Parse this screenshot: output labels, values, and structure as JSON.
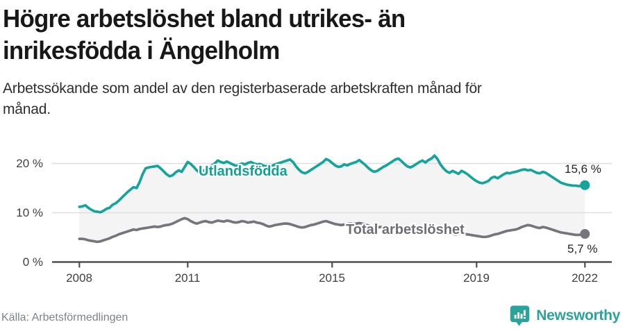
{
  "header": {
    "title_lines": [
      "Högre arbetslöshet bland utrikes- än",
      "inrikesfödda i Ängelholm"
    ],
    "subtitle_lines": [
      "Arbetssökande som andel av den registerbaserade arbetskraften månad för",
      "månad."
    ]
  },
  "footer": {
    "source": "Källa: Arbetsförmedlingen",
    "brand_name": "Newsworthy",
    "brand_icon": "speech-bubble-with-bar-chart",
    "brand_color": "#2ba39a"
  },
  "chart_data": {
    "type": "line",
    "title": "Högre arbetslöshet bland utrikes- än inrikesfödda i Ängelholm",
    "subtitle": "Arbetssökande som andel av den registerbaserade arbetskraften månad för månad.",
    "source": "Källa: Arbetsförmedlingen",
    "x_unit": "month",
    "x_start": "2008-01",
    "x_end": "2022-01",
    "x_ticks": [
      2008,
      2011,
      2015,
      2019,
      2022
    ],
    "x_tick_labels": [
      "2008",
      "2011",
      "2015",
      "2019",
      "2022"
    ],
    "y_tick_labels": [
      "20 %",
      "10 %",
      "0 %"
    ],
    "y_grid_values": [
      10,
      20
    ],
    "ylim": [
      0,
      22
    ],
    "grid": "horizontal-only",
    "legend_position": "inline-labels",
    "colors": {
      "band": "#f4f4f5",
      "grid": "#dedede",
      "axis": "#4f4f4f"
    },
    "band_fill_between_series": true,
    "series": [
      {
        "name": "Utlandsfödda",
        "color": "#14a49b",
        "end_label": "15,6 %",
        "end_value": 15.6,
        "values": [
          11.2,
          11.3,
          11.5,
          11.0,
          10.6,
          10.3,
          10.2,
          10.1,
          10.4,
          10.8,
          11.0,
          11.6,
          11.9,
          12.4,
          13.0,
          13.6,
          14.2,
          14.7,
          15.2,
          15.0,
          16.2,
          17.8,
          19.0,
          19.2,
          19.3,
          19.4,
          19.5,
          19.0,
          18.4,
          17.8,
          17.4,
          17.6,
          18.2,
          18.6,
          18.3,
          19.3,
          20.3,
          19.9,
          19.3,
          18.6,
          18.1,
          18.4,
          18.8,
          19.2,
          19.6,
          20.0,
          20.6,
          20.3,
          20.1,
          20.4,
          20.1,
          19.8,
          19.5,
          19.7,
          20.0,
          19.8,
          20.1,
          20.3,
          20.0,
          19.8,
          19.9,
          19.6,
          19.4,
          19.7,
          19.5,
          19.8,
          20.0,
          20.2,
          20.4,
          20.6,
          20.8,
          20.3,
          19.4,
          18.7,
          18.2,
          18.0,
          18.3,
          18.7,
          19.1,
          19.5,
          19.9,
          20.3,
          20.9,
          20.6,
          20.1,
          19.6,
          19.3,
          19.4,
          19.8,
          19.6,
          19.9,
          20.1,
          20.3,
          20.7,
          20.2,
          19.7,
          19.1,
          18.6,
          18.3,
          18.5,
          18.9,
          19.3,
          19.6,
          20.0,
          20.4,
          20.8,
          21.0,
          20.5,
          19.9,
          19.4,
          19.2,
          19.5,
          19.9,
          20.3,
          20.6,
          20.2,
          20.7,
          21.0,
          21.6,
          20.9,
          19.8,
          19.0,
          18.4,
          18.1,
          18.5,
          18.2,
          17.9,
          18.5,
          18.2,
          17.8,
          17.3,
          16.8,
          16.4,
          16.1,
          16.0,
          16.2,
          16.5,
          17.1,
          17.3,
          17.0,
          17.4,
          17.8,
          18.1,
          18.0,
          18.2,
          18.3,
          18.5,
          18.7,
          18.8,
          18.6,
          18.7,
          18.4,
          18.1,
          18.0,
          18.3,
          18.1,
          17.7,
          17.3,
          16.9,
          16.5,
          16.1,
          15.9,
          15.7,
          15.6,
          15.5,
          15.5,
          15.4,
          15.5,
          15.6
        ]
      },
      {
        "name": "Total arbetslöshet",
        "color": "#75757b",
        "end_label": "5,7 %",
        "end_value": 5.7,
        "values": [
          4.7,
          4.7,
          4.6,
          4.4,
          4.3,
          4.2,
          4.1,
          4.2,
          4.4,
          4.6,
          4.8,
          5.1,
          5.3,
          5.6,
          5.8,
          6.0,
          6.2,
          6.4,
          6.6,
          6.5,
          6.7,
          6.8,
          6.9,
          7.0,
          7.1,
          7.2,
          7.1,
          7.2,
          7.4,
          7.5,
          7.6,
          7.8,
          8.1,
          8.4,
          8.7,
          8.9,
          8.7,
          8.3,
          8.0,
          7.8,
          8.0,
          8.2,
          8.3,
          8.1,
          8.0,
          8.2,
          8.4,
          8.3,
          8.2,
          8.4,
          8.3,
          8.1,
          8.0,
          8.1,
          8.3,
          8.2,
          8.0,
          8.1,
          8.2,
          8.0,
          7.9,
          7.7,
          7.4,
          7.2,
          7.3,
          7.5,
          7.6,
          7.7,
          7.8,
          7.8,
          7.7,
          7.5,
          7.3,
          7.1,
          7.0,
          7.1,
          7.3,
          7.5,
          7.6,
          7.8,
          8.0,
          8.2,
          8.3,
          8.1,
          7.9,
          7.7,
          7.6,
          7.5,
          7.6,
          7.7,
          7.8,
          7.7,
          7.8,
          7.9,
          7.8,
          7.6,
          7.4,
          7.2,
          7.1,
          7.0,
          7.1,
          7.2,
          7.3,
          7.2,
          7.1,
          7.0,
          6.9,
          6.8,
          6.7,
          6.5,
          6.4,
          6.5,
          6.6,
          6.7,
          6.8,
          6.6,
          6.5,
          6.4,
          6.3,
          6.2,
          6.1,
          6.0,
          5.9,
          5.8,
          5.7,
          5.6,
          5.7,
          5.8,
          5.7,
          5.6,
          5.5,
          5.4,
          5.3,
          5.2,
          5.1,
          5.1,
          5.2,
          5.4,
          5.6,
          5.7,
          5.9,
          6.1,
          6.3,
          6.4,
          6.5,
          6.6,
          6.8,
          7.1,
          7.3,
          7.5,
          7.4,
          7.2,
          7.0,
          6.9,
          7.1,
          7.0,
          6.8,
          6.6,
          6.4,
          6.2,
          6.0,
          5.9,
          5.8,
          5.7,
          5.6,
          5.5,
          5.5,
          5.6,
          5.7
        ]
      }
    ]
  }
}
